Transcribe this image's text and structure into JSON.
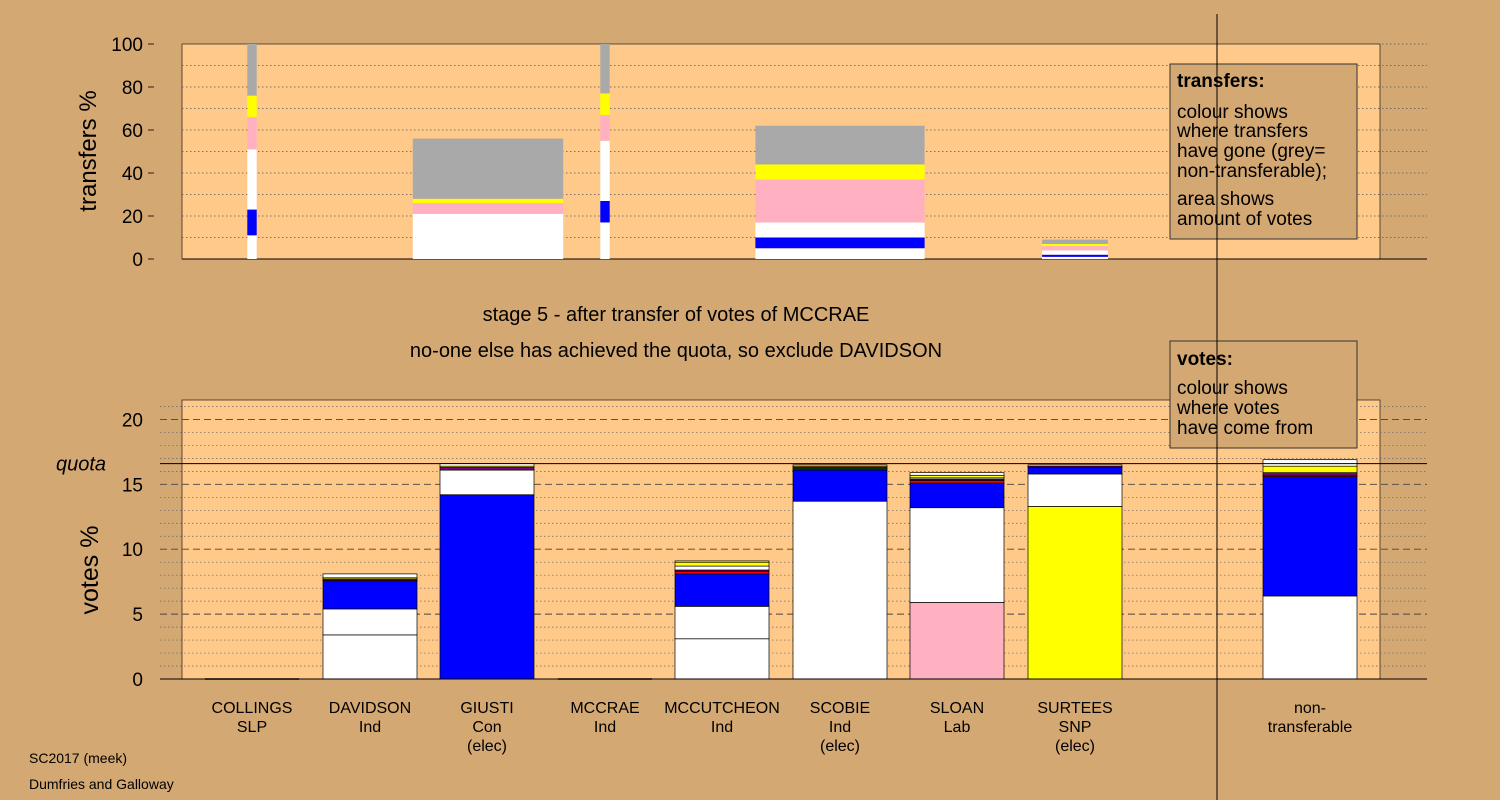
{
  "colors": {
    "background": "#d4a873",
    "plot_panel": "#ffc98a",
    "grey": "#a9a9a9",
    "yellow": "#ffff00",
    "pink": "#ffb1c2",
    "white": "#ffffff",
    "blue": "#0000ff",
    "red": "#ff0000",
    "purple": "#800080",
    "green": "#008000",
    "orange": "#ff8c00",
    "dark_red": "#8b0000"
  },
  "headings": {
    "stage": "stage 5 - after transfer of votes of MCCRAE",
    "exclusion": "no-one else has achieved the quota, so exclude DAVIDSON"
  },
  "footer": {
    "election": "SC2017 (meek)",
    "ward": "Dumfries and Galloway"
  },
  "chart_data": [
    {
      "id": "transfers",
      "type": "bar",
      "stacked": true,
      "ylabel": "transfers %",
      "ylim": [
        0,
        100
      ],
      "yticks": [
        0,
        20,
        40,
        60,
        80,
        100
      ],
      "grid": "dotted horizontal",
      "legend": {
        "title": "transfers:",
        "lines": [
          "colour shows",
          "where transfers",
          "have gone (grey=",
          "non-transferable);",
          "area shows",
          "amount of votes"
        ],
        "placement": "top-right"
      },
      "bars": [
        {
          "source": "COLLINGS",
          "width_scale": 0.1,
          "segments": [
            {
              "color": "white",
              "value": 11
            },
            {
              "color": "blue",
              "value": 12
            },
            {
              "color": "white",
              "value": 28
            },
            {
              "color": "pink",
              "value": 15
            },
            {
              "color": "yellow",
              "value": 10
            },
            {
              "color": "grey",
              "value": 24
            }
          ]
        },
        {
          "source": "DAVIDSON",
          "width_scale": 1.6,
          "segments": [
            {
              "color": "white",
              "value": 10
            },
            {
              "color": "white",
              "value": 11
            },
            {
              "color": "pink",
              "value": 5
            },
            {
              "color": "yellow",
              "value": 2
            },
            {
              "color": "grey",
              "value": 28
            }
          ]
        },
        {
          "source": "MCCRAE",
          "width_scale": 0.1,
          "segments": [
            {
              "color": "white",
              "value": 17
            },
            {
              "color": "blue",
              "value": 10
            },
            {
              "color": "white",
              "value": 28
            },
            {
              "color": "pink",
              "value": 12
            },
            {
              "color": "yellow",
              "value": 10
            },
            {
              "color": "grey",
              "value": 23
            }
          ]
        },
        {
          "source": "MCCUTCHEON",
          "width_scale": 1.8,
          "segments": [
            {
              "color": "white",
              "value": 5
            },
            {
              "color": "blue",
              "value": 5
            },
            {
              "color": "white",
              "value": 7
            },
            {
              "color": "pink",
              "value": 20
            },
            {
              "color": "yellow",
              "value": 7
            },
            {
              "color": "grey",
              "value": 18
            }
          ]
        },
        {
          "source": "SCOBIE",
          "width_scale": 0.7,
          "segments": [
            {
              "color": "white",
              "value": 1
            },
            {
              "color": "blue",
              "value": 1
            },
            {
              "color": "white",
              "value": 2
            },
            {
              "color": "pink",
              "value": 2
            },
            {
              "color": "yellow",
              "value": 1
            },
            {
              "color": "grey",
              "value": 2
            }
          ]
        }
      ]
    },
    {
      "id": "votes",
      "type": "bar",
      "stacked": true,
      "ylabel": "votes %",
      "ylim": [
        0,
        21.5
      ],
      "yticks": [
        0,
        5,
        10,
        15,
        20
      ],
      "quota": {
        "label": "quota",
        "value": 16.6
      },
      "grid": "dashed major, dotted minor",
      "legend": {
        "title": "votes:",
        "lines": [
          "colour shows",
          "where votes",
          "have come from"
        ],
        "placement": "top-right"
      },
      "categories": [
        {
          "name": "COLLINGS",
          "party": "SLP",
          "status": ""
        },
        {
          "name": "DAVIDSON",
          "party": "Ind",
          "status": ""
        },
        {
          "name": "GIUSTI",
          "party": "Con",
          "status": "(elec)"
        },
        {
          "name": "MCCRAE",
          "party": "Ind",
          "status": ""
        },
        {
          "name": "MCCUTCHEON",
          "party": "Ind",
          "status": ""
        },
        {
          "name": "SCOBIE",
          "party": "Ind",
          "status": "(elec)"
        },
        {
          "name": "SLOAN",
          "party": "Lab",
          "status": ""
        },
        {
          "name": "SURTEES",
          "party": "SNP",
          "status": "(elec)"
        },
        {
          "name": "",
          "party": "",
          "status": ""
        },
        {
          "name": "non-",
          "party": "transferable",
          "status": ""
        }
      ],
      "stacks": [
        [],
        [
          {
            "color": "white",
            "value": 3.4
          },
          {
            "color": "white",
            "value": 2.0
          },
          {
            "color": "blue",
            "value": 2.1
          },
          {
            "color": "red",
            "value": 0.1
          },
          {
            "color": "purple",
            "value": 0.1
          },
          {
            "color": "yellow",
            "value": 0.1
          },
          {
            "color": "white",
            "value": 0.3
          }
        ],
        [
          {
            "color": "blue",
            "value": 14.2
          },
          {
            "color": "white",
            "value": 1.9
          },
          {
            "color": "purple",
            "value": 0.2
          },
          {
            "color": "yellow",
            "value": 0.1
          },
          {
            "color": "white",
            "value": 0.2
          }
        ],
        [],
        [
          {
            "color": "white",
            "value": 3.1
          },
          {
            "color": "white",
            "value": 2.5
          },
          {
            "color": "blue",
            "value": 2.5
          },
          {
            "color": "red",
            "value": 0.2
          },
          {
            "color": "purple",
            "value": 0.1
          },
          {
            "color": "white",
            "value": 0.3
          },
          {
            "color": "yellow",
            "value": 0.3
          },
          {
            "color": "white",
            "value": 0.1
          }
        ],
        [
          {
            "color": "white",
            "value": 13.7
          },
          {
            "color": "blue",
            "value": 2.4
          },
          {
            "color": "purple",
            "value": 0.1
          },
          {
            "color": "green",
            "value": 0.1
          },
          {
            "color": "orange",
            "value": 0.1
          },
          {
            "color": "white",
            "value": 0.1
          }
        ],
        [
          {
            "color": "pink",
            "value": 5.9
          },
          {
            "color": "white",
            "value": 7.3
          },
          {
            "color": "blue",
            "value": 1.9
          },
          {
            "color": "red",
            "value": 0.2
          },
          {
            "color": "purple",
            "value": 0.1
          },
          {
            "color": "white",
            "value": 0.1
          },
          {
            "color": "yellow",
            "value": 0.2
          },
          {
            "color": "white",
            "value": 0.2
          }
        ],
        [
          {
            "color": "yellow",
            "value": 13.3
          },
          {
            "color": "white",
            "value": 2.5
          },
          {
            "color": "blue",
            "value": 0.5
          },
          {
            "color": "purple",
            "value": 0.1
          },
          {
            "color": "white",
            "value": 0.1
          }
        ],
        [],
        [
          {
            "color": "white",
            "value": 6.4
          },
          {
            "color": "blue",
            "value": 9.2
          },
          {
            "color": "red",
            "value": 0.1
          },
          {
            "color": "purple",
            "value": 0.2
          },
          {
            "color": "yellow",
            "value": 0.5
          },
          {
            "color": "white",
            "value": 0.5
          }
        ]
      ]
    }
  ]
}
